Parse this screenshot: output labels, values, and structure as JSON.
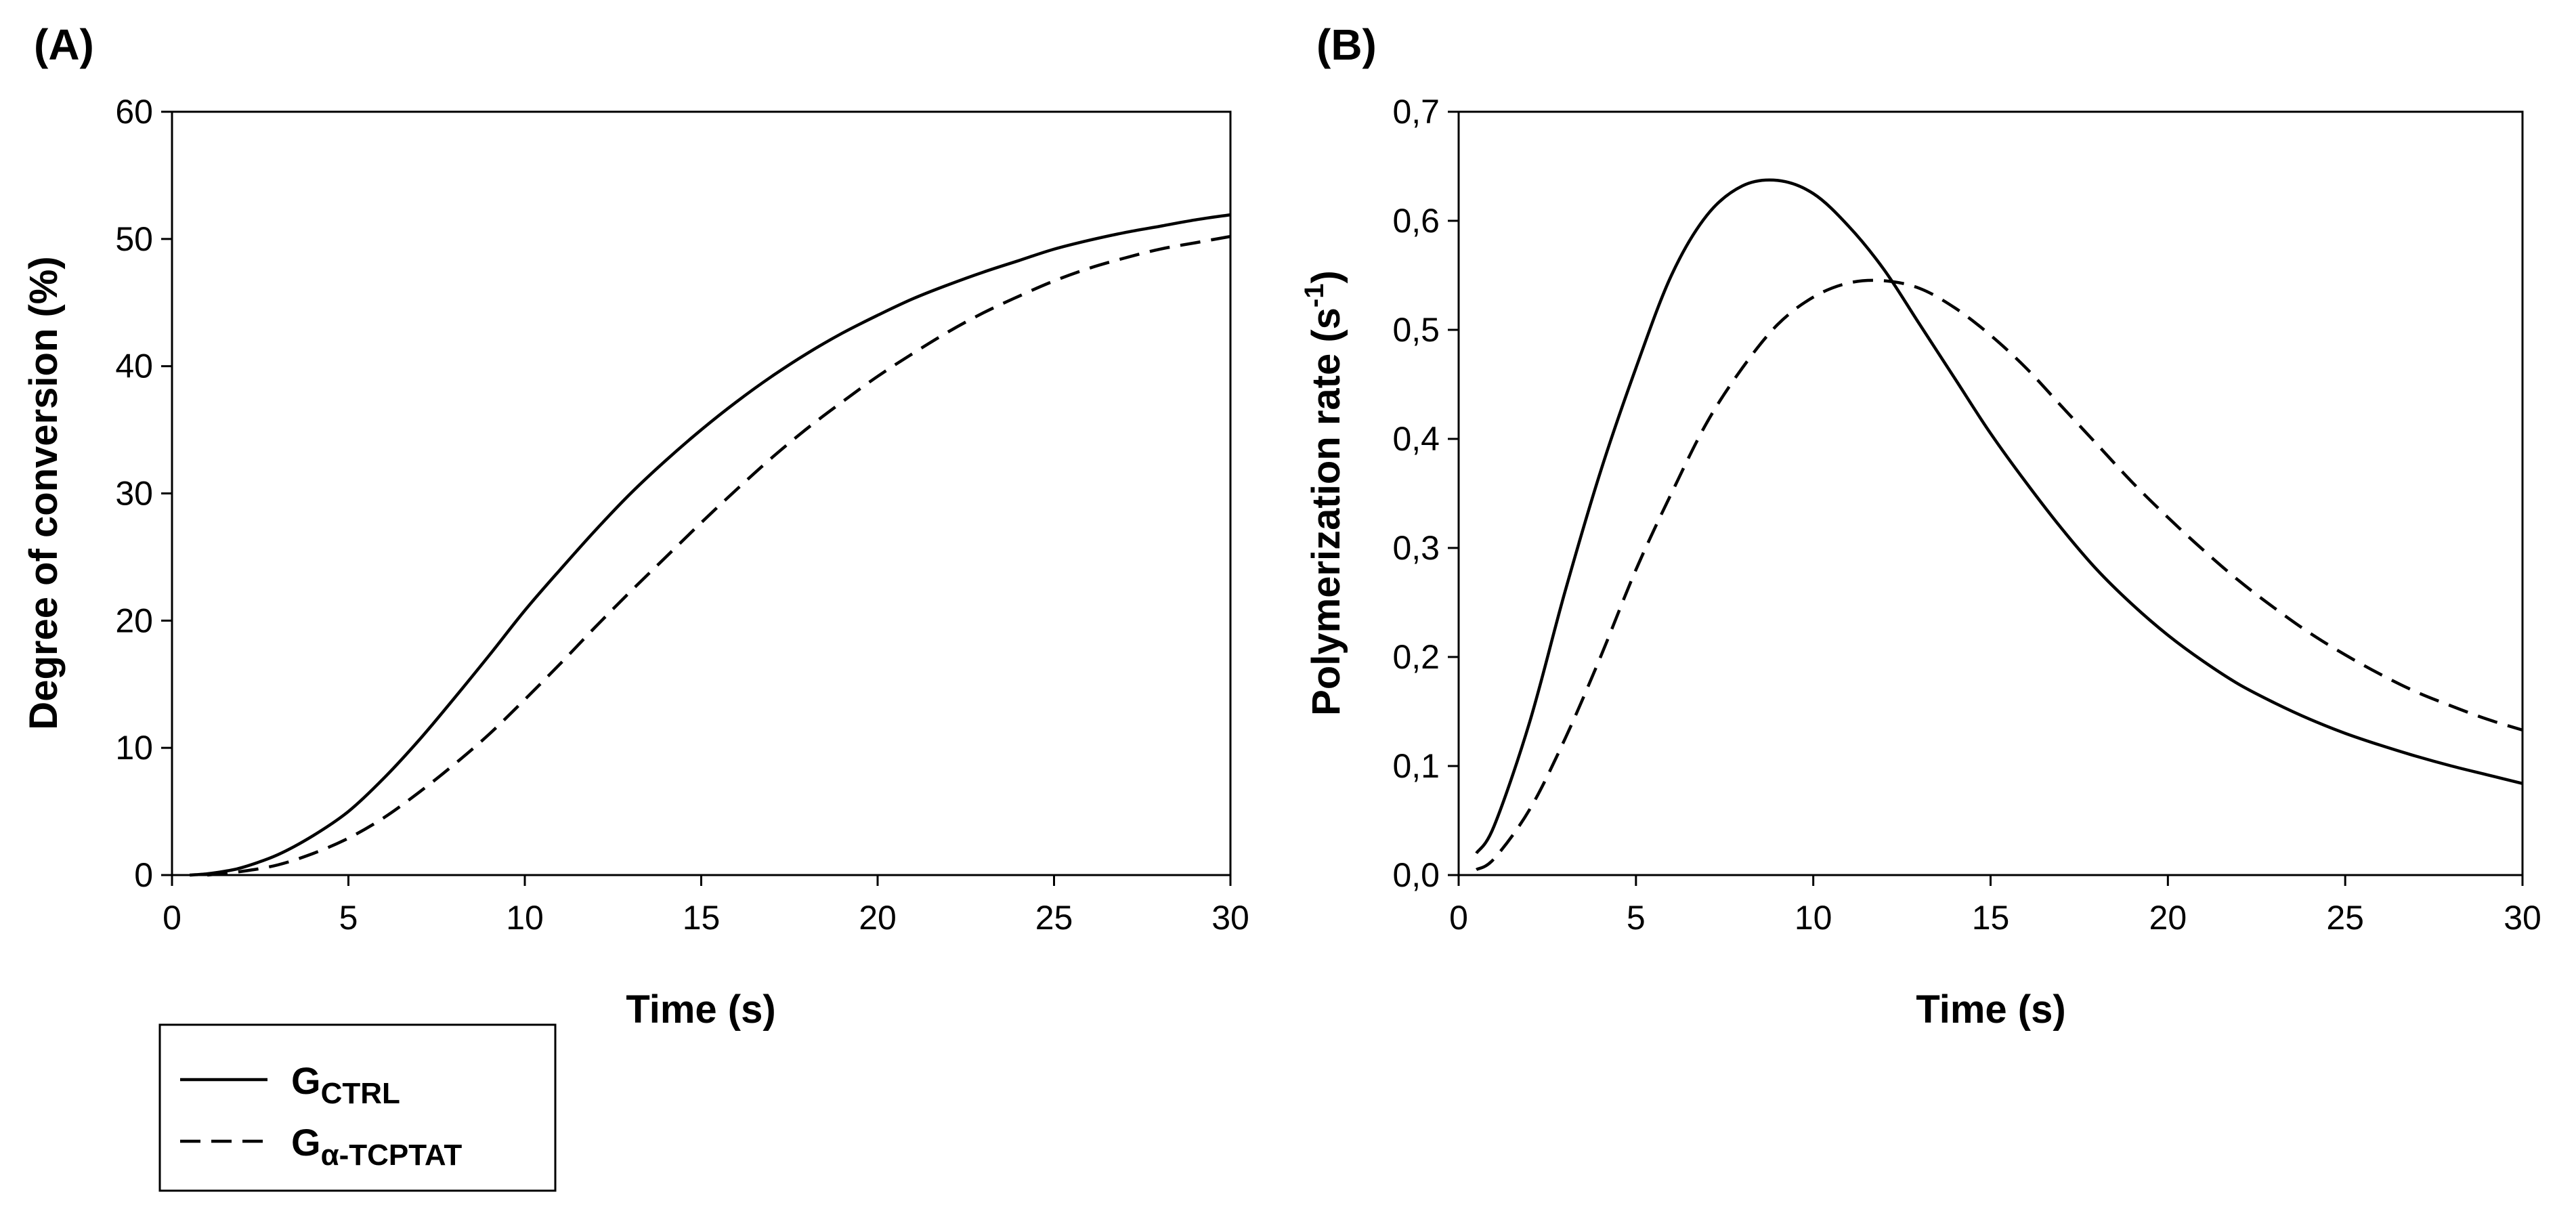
{
  "chart_data": [
    {
      "type": "line",
      "panel_label": "(A)",
      "title": "",
      "xlabel": "Time (s)",
      "ylabel": "Degree of conversion (%)",
      "xlim": [
        0,
        30
      ],
      "ylim": [
        0,
        60
      ],
      "x_ticks": [
        "0",
        "5",
        "10",
        "15",
        "20",
        "25",
        "30"
      ],
      "y_ticks": [
        "0",
        "10",
        "20",
        "30",
        "40",
        "50",
        "60"
      ],
      "grid": false,
      "series": [
        {
          "name": "G_CTRL",
          "style": "solid",
          "x": [
            0.5,
            1,
            1.5,
            2,
            3,
            4,
            5,
            6,
            7,
            8,
            9,
            10,
            11,
            12,
            13,
            14,
            15,
            16,
            17,
            18,
            19,
            20,
            21,
            22,
            23,
            24,
            25,
            26,
            27,
            28,
            29,
            30
          ],
          "y": [
            0,
            0.1,
            0.3,
            0.6,
            1.6,
            3.1,
            5.0,
            7.6,
            10.6,
            13.9,
            17.3,
            20.8,
            24.0,
            27.1,
            30.0,
            32.6,
            35.0,
            37.2,
            39.2,
            41.0,
            42.6,
            44.0,
            45.3,
            46.4,
            47.4,
            48.3,
            49.2,
            49.9,
            50.5,
            51.0,
            51.5,
            51.9
          ]
        },
        {
          "name": "G_α-TCPTAT",
          "style": "dashed",
          "x": [
            1,
            2,
            3,
            4,
            5,
            6,
            7,
            8,
            9,
            10,
            11,
            12,
            13,
            14,
            15,
            16,
            17,
            18,
            19,
            20,
            21,
            22,
            23,
            24,
            25,
            26,
            27,
            28,
            29,
            30
          ],
          "y": [
            0,
            0.3,
            0.8,
            1.7,
            2.9,
            4.5,
            6.5,
            8.7,
            11.1,
            13.8,
            16.6,
            19.5,
            22.3,
            25.0,
            27.7,
            30.3,
            32.8,
            35.1,
            37.2,
            39.2,
            41.0,
            42.7,
            44.2,
            45.5,
            46.7,
            47.7,
            48.5,
            49.2,
            49.7,
            50.2
          ]
        }
      ]
    },
    {
      "type": "line",
      "panel_label": "(B)",
      "title": "",
      "xlabel": "Time (s)",
      "ylabel": "Polymerization rate (s",
      "ylabel_sup": "-1",
      "ylabel_end": ")",
      "xlim": [
        0,
        30
      ],
      "ylim": [
        0,
        0.7
      ],
      "x_ticks": [
        "0",
        "5",
        "10",
        "15",
        "20",
        "25",
        "30"
      ],
      "y_ticks": [
        "0,0",
        "0,1",
        "0,2",
        "0,3",
        "0,4",
        "0,5",
        "0,6",
        "0,7"
      ],
      "grid": false,
      "series": [
        {
          "name": "G_CTRL",
          "style": "solid",
          "x": [
            0.5,
            1,
            2,
            3,
            4,
            5,
            6,
            7,
            8,
            9,
            10,
            11,
            12,
            13,
            14,
            15,
            16,
            17,
            18,
            19,
            20,
            21,
            22,
            23,
            24,
            25,
            26,
            27,
            28,
            29,
            30
          ],
          "y": [
            0.02,
            0.045,
            0.14,
            0.26,
            0.37,
            0.465,
            0.55,
            0.605,
            0.632,
            0.637,
            0.625,
            0.595,
            0.555,
            0.505,
            0.455,
            0.405,
            0.36,
            0.318,
            0.28,
            0.248,
            0.22,
            0.196,
            0.175,
            0.158,
            0.143,
            0.13,
            0.119,
            0.109,
            0.1,
            0.092,
            0.084
          ]
        },
        {
          "name": "G_α-TCPTAT",
          "style": "dashed",
          "x": [
            0.5,
            1,
            2,
            3,
            4,
            5,
            6,
            7,
            8,
            9,
            10,
            11,
            12,
            13,
            14,
            15,
            16,
            17,
            18,
            19,
            20,
            21,
            22,
            23,
            24,
            25,
            26,
            27,
            28,
            29,
            30
          ],
          "y": [
            0.005,
            0.015,
            0.06,
            0.125,
            0.2,
            0.28,
            0.35,
            0.415,
            0.465,
            0.505,
            0.53,
            0.543,
            0.545,
            0.538,
            0.52,
            0.495,
            0.465,
            0.43,
            0.395,
            0.36,
            0.328,
            0.298,
            0.27,
            0.245,
            0.222,
            0.202,
            0.184,
            0.168,
            0.155,
            0.143,
            0.133
          ]
        }
      ]
    }
  ],
  "legend": {
    "items": [
      {
        "letter": "G",
        "subscript": "CTRL",
        "style": "solid"
      },
      {
        "letter": "G",
        "subscript": "α-TCPTAT",
        "style": "dashed"
      }
    ]
  }
}
